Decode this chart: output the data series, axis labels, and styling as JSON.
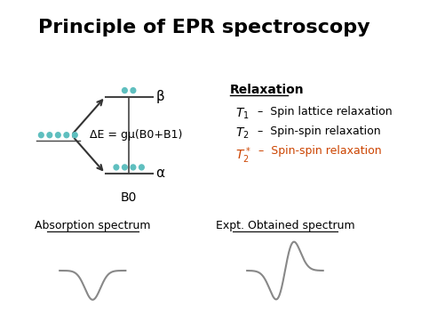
{
  "title": "Principle of EPR spectroscopy",
  "title_fontsize": 16,
  "title_fontweight": "bold",
  "bg_color": "#ffffff",
  "text_color": "#000000",
  "orange_color": "#cc4400",
  "relaxation_title": "Relaxation",
  "relax_lines": [
    {
      "text": " –  Spin lattice relaxation",
      "color": "#000000"
    },
    {
      "text": " –  Spin-spin relaxation",
      "color": "#000000"
    },
    {
      "text": "–  Spin-spin relaxation",
      "color": "#cc4400"
    }
  ],
  "energy_label": "ΔE = gμ(B0+B1)",
  "beta_label": "β",
  "alpha_label": "α",
  "b0_label": "B0",
  "absorption_label": "Absorption spectrum",
  "expt_label": "Expt. Obtained spectrum"
}
